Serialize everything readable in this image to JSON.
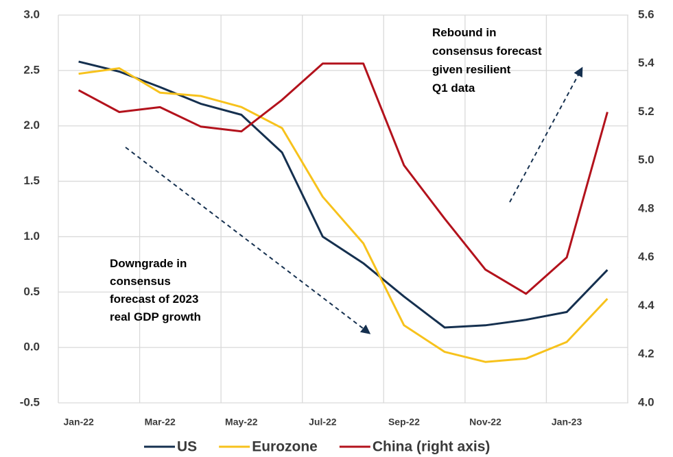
{
  "chart_data": {
    "type": "line",
    "categories": [
      "Jan-22",
      null,
      "Mar-22",
      null,
      "May-22",
      null,
      "Jul-22",
      null,
      "Sep-22",
      null,
      "Nov-22",
      null,
      "Jan-23",
      null
    ],
    "series": [
      {
        "name": "US",
        "color": "#15304f",
        "values": [
          2.58,
          2.49,
          2.35,
          2.2,
          2.1,
          1.76,
          1.0,
          0.76,
          0.46,
          0.18,
          0.2,
          0.25,
          0.32,
          0.7
        ]
      },
      {
        "name": "Eurozone",
        "color": "#f7c21c",
        "values": [
          2.47,
          2.52,
          2.3,
          2.27,
          2.17,
          1.98,
          1.36,
          0.94,
          0.2,
          -0.04,
          -0.13,
          -0.1,
          0.05,
          0.44
        ]
      },
      {
        "name": "China (right axis)",
        "color": "#b3121c",
        "axis": "y2",
        "values": [
          5.29,
          5.2,
          5.22,
          5.14,
          5.12,
          5.25,
          5.4,
          5.4,
          4.98,
          4.76,
          4.55,
          4.45,
          4.6,
          5.2
        ]
      }
    ],
    "ylim": [
      -0.5,
      3.0
    ],
    "yticks": [
      -0.5,
      {
        "value": 0,
        "label": "0.0"
      },
      0.5,
      {
        "value": 1,
        "label": "1.0"
      },
      1.5,
      {
        "value": 2,
        "label": "2.0"
      },
      2.5,
      {
        "value": 3,
        "label": "3.0"
      }
    ],
    "y2lim": [
      4.0,
      5.6
    ],
    "y2ticks": [
      {
        "value": 4,
        "label": "4.0"
      },
      4.2,
      4.4,
      4.6,
      4.8,
      {
        "value": 5,
        "label": "5.0"
      },
      5.2,
      5.4,
      5.6
    ],
    "grid": true,
    "legend": "bottom",
    "annotations": [
      "Downgrade in",
      "consensus",
      "forecast of 2023",
      "real GDP growth",
      "Rebound in",
      "consensus forecast",
      "given resilient",
      "Q1 data"
    ]
  }
}
